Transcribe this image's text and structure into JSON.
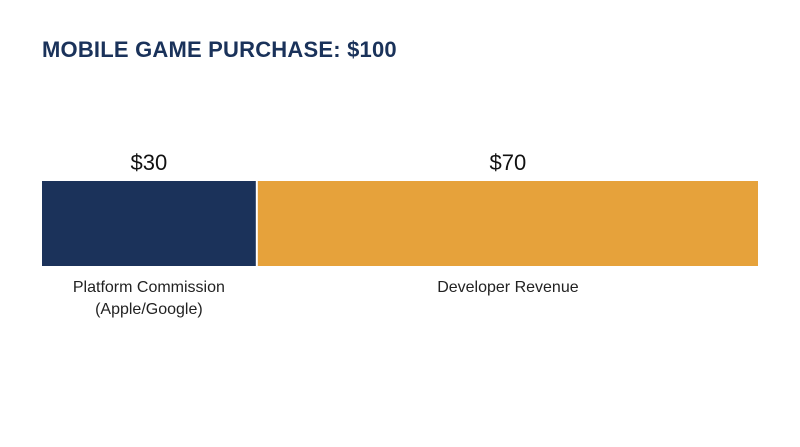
{
  "chart_data": {
    "type": "bar",
    "orientation": "horizontal-stacked",
    "title": "MOBILE GAME PURCHASE: $100",
    "total": 100,
    "segments": [
      {
        "category": [
          "Platform Commission",
          "(Apple/Google)"
        ],
        "value": 30,
        "value_label": "$30",
        "color": "#1b325a"
      },
      {
        "category": [
          "Developer Revenue"
        ],
        "value": 70,
        "value_label": "$70",
        "color": "#e6a23b"
      }
    ],
    "grid": false,
    "legend": "none"
  }
}
